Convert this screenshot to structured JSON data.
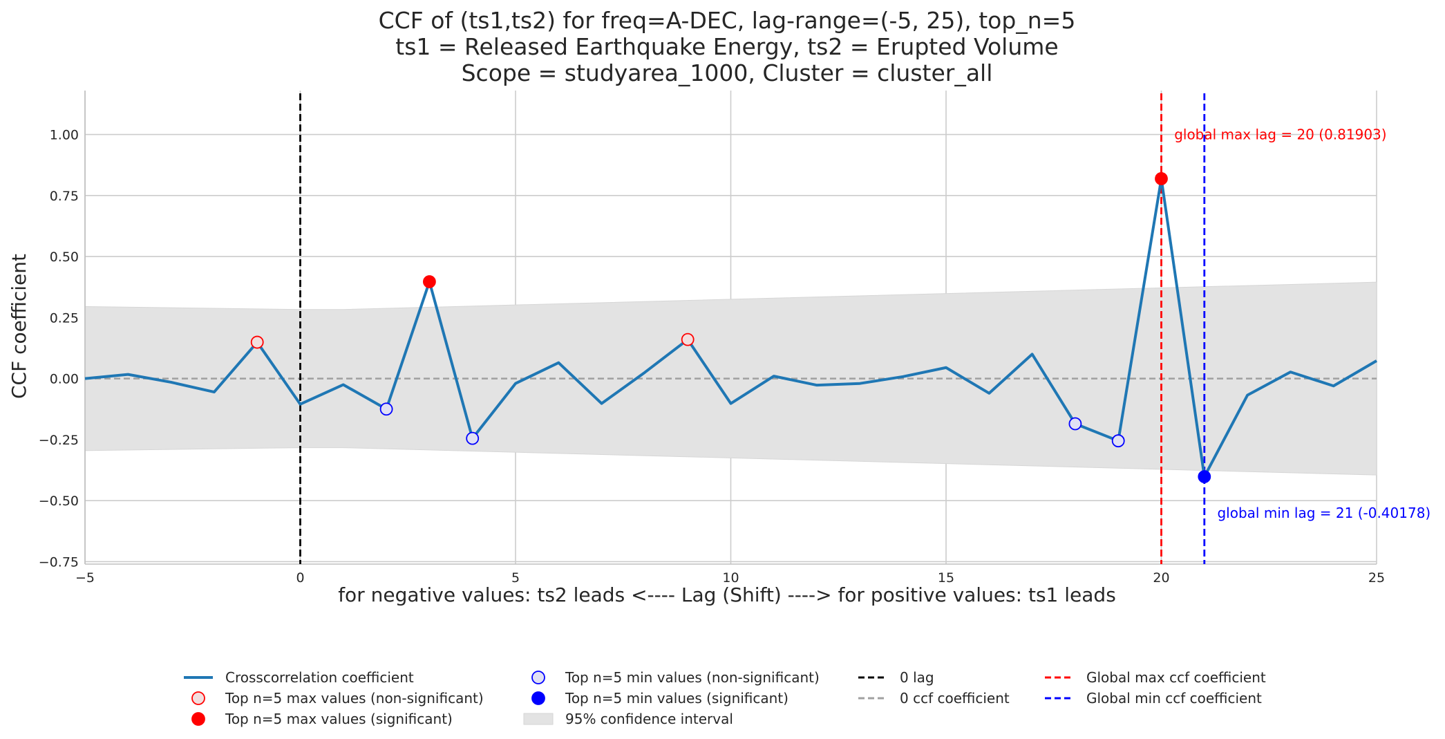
{
  "chart_data": {
    "type": "line",
    "title_lines": [
      "CCF of (ts1,ts2) for freq=A-DEC, lag-range=(-5, 25), top_n=5",
      "ts1 = Released Earthquake Energy, ts2 = Erupted Volume",
      "Scope = studyarea_1000, Cluster = cluster_all"
    ],
    "xlabel": "for negative values: ts2 leads <----    Lag (Shift)    ----> for positive values: ts1 leads",
    "ylabel": "CCF coefficient",
    "xlim": [
      -5,
      25
    ],
    "ylim": [
      -0.76,
      1.18
    ],
    "x_ticks": [
      -5,
      0,
      5,
      10,
      15,
      20,
      25
    ],
    "x_tick_labels": [
      "−5",
      "0",
      "5",
      "10",
      "15",
      "20",
      "25"
    ],
    "y_ticks": [
      -0.75,
      -0.5,
      -0.25,
      0.0,
      0.25,
      0.5,
      0.75,
      1.0
    ],
    "y_tick_labels": [
      "−0.75",
      "−0.50",
      "−0.25",
      "0.00",
      "0.25",
      "0.50",
      "0.75",
      "1.00"
    ],
    "grid": true,
    "series": [
      {
        "name": "Crosscorrelation coefficient",
        "color": "#1f77b4",
        "x": [
          -5,
          -4,
          -3,
          -2,
          -1,
          0,
          1,
          2,
          3,
          4,
          5,
          6,
          7,
          8,
          9,
          10,
          11,
          12,
          13,
          14,
          15,
          16,
          17,
          18,
          19,
          20,
          21,
          22,
          23,
          24,
          25
        ],
        "y": [
          0.0,
          0.017,
          -0.015,
          -0.055,
          0.149,
          -0.105,
          -0.025,
          -0.125,
          0.397,
          -0.245,
          -0.02,
          0.065,
          -0.102,
          0.025,
          0.16,
          -0.102,
          0.01,
          -0.027,
          -0.02,
          0.008,
          0.045,
          -0.06,
          0.1,
          -0.185,
          -0.255,
          0.81903,
          -0.40178,
          -0.068,
          0.027,
          -0.03,
          0.073
        ]
      }
    ],
    "confidence_band": {
      "name": "95% confidence interval",
      "x": [
        -5,
        0,
        1,
        25
      ],
      "upper": [
        0.295,
        0.283,
        0.283,
        0.395
      ],
      "lower": [
        -0.295,
        -0.283,
        -0.283,
        -0.395
      ]
    },
    "top_max_nonsignificant": {
      "x": [
        -1,
        9
      ],
      "y": [
        0.149,
        0.16
      ]
    },
    "top_max_significant": {
      "x": [
        3,
        20
      ],
      "y": [
        0.397,
        0.81903
      ]
    },
    "top_min_nonsignificant": {
      "x": [
        2,
        4,
        18,
        19
      ],
      "y": [
        -0.125,
        -0.245,
        -0.185,
        -0.255
      ]
    },
    "top_min_significant": {
      "x": [
        21
      ],
      "y": [
        -0.40178
      ]
    },
    "vlines": [
      {
        "x": 0,
        "color": "#000000",
        "label": "0 lag"
      },
      {
        "x": 20,
        "color": "#ff0000",
        "label": "Global max ccf coefficient"
      },
      {
        "x": 21,
        "color": "#0000ff",
        "label": "Global min ccf coefficient"
      }
    ],
    "hline": {
      "y": 0,
      "color": "#a0a0a0",
      "label": "0 ccf coefficient"
    },
    "annotations": [
      {
        "text": "global max lag = 20 (0.81903)",
        "color": "#ff0000",
        "x": 20.3,
        "y": 1.0
      },
      {
        "text": "global min lag = 21 (-0.40178)",
        "color": "#0000ff",
        "x": 21.3,
        "y": -0.55
      }
    ],
    "legend": {
      "placement": "bottom-center",
      "columns": [
        [
          "Crosscorrelation coefficient",
          "Top n=5 max values (non-significant)",
          "Top n=5 max values (significant)"
        ],
        [
          "Top n=5 min values (non-significant)",
          "Top n=5 min values (significant)",
          "95% confidence interval"
        ],
        [
          "0 lag",
          "0 ccf coefficient"
        ],
        [
          "Global max ccf coefficient",
          "Global min ccf coefficient"
        ]
      ]
    }
  }
}
